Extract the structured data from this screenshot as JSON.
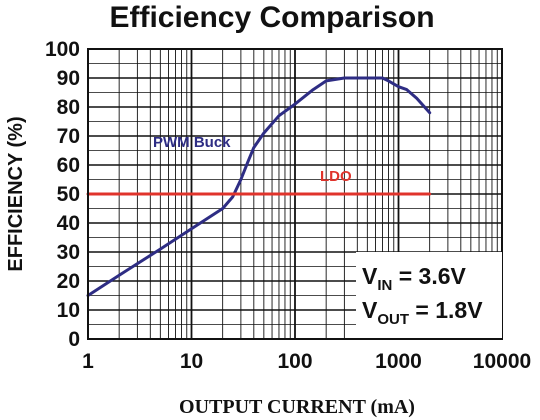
{
  "chart_data": {
    "type": "line",
    "title": "Efficiency Comparison",
    "xlabel": "OUTPUT CURRENT (mA)",
    "ylabel": "EFFICIENCY (%)",
    "x_scale": "log",
    "xlim": [
      1,
      10000
    ],
    "ylim": [
      0,
      100
    ],
    "x_ticks": [
      1,
      10,
      100,
      1000,
      10000
    ],
    "x_tick_labels": [
      "1",
      "10",
      "100",
      "1000",
      "10000"
    ],
    "y_ticks": [
      0,
      10,
      20,
      30,
      40,
      50,
      60,
      70,
      80,
      90,
      100
    ],
    "y_tick_labels": [
      "0",
      "10",
      "20",
      "30",
      "40",
      "50",
      "60",
      "70",
      "80",
      "90",
      "100"
    ],
    "grid": true,
    "series": [
      {
        "name": "PWM Buck",
        "color": "#2e2d84",
        "x": [
          1,
          2,
          5,
          10,
          20,
          25,
          30,
          35,
          40,
          50,
          70,
          100,
          150,
          200,
          300,
          500,
          700,
          800,
          1000,
          1200,
          1500,
          2000
        ],
        "y": [
          15,
          22,
          31,
          38,
          45,
          49,
          55,
          61,
          66,
          71,
          77,
          81,
          86,
          89,
          90,
          90,
          90,
          89,
          87,
          86,
          83,
          78
        ]
      },
      {
        "name": "LDO",
        "color": "#e0332b",
        "x": [
          1,
          2000
        ],
        "y": [
          50,
          50
        ]
      }
    ],
    "annotations": {
      "vin_main": "V",
      "vin_sub": "IN",
      "vin_value": " = 3.6V",
      "vout_main": "V",
      "vout_sub": "OUT",
      "vout_value": " = 1.8V"
    }
  }
}
